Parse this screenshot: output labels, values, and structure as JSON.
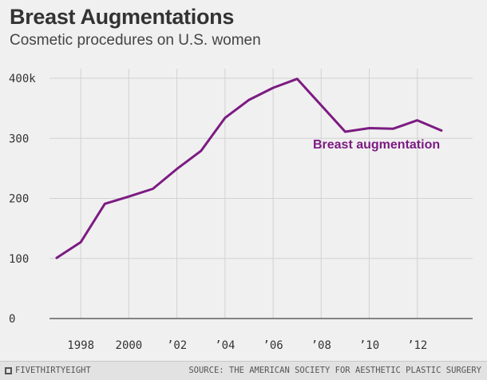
{
  "header": {
    "title": "Breast Augmentations",
    "subtitle": "Cosmetic procedures on U.S. women"
  },
  "footer": {
    "brand": "FIVETHIRTYEIGHT",
    "source": "SOURCE: THE AMERICAN SOCIETY FOR AESTHETIC PLASTIC SURGERY"
  },
  "colors": {
    "line": "#7c1b82",
    "grid": "#d2d2d2",
    "baseline": "#444444",
    "background": "#f0f0f0"
  },
  "chart_data": {
    "type": "line",
    "title": "Breast Augmentations",
    "subtitle": "Cosmetic procedures on U.S. women",
    "xlim": [
      1996.7,
      2014.3
    ],
    "ylim": [
      0,
      400
    ],
    "x_ticks": [
      {
        "value": 1998,
        "label": "1998"
      },
      {
        "value": 2000,
        "label": "2000"
      },
      {
        "value": 2002,
        "label": "’02"
      },
      {
        "value": 2004,
        "label": "’04"
      },
      {
        "value": 2006,
        "label": "’06"
      },
      {
        "value": 2008,
        "label": "’08"
      },
      {
        "value": 2010,
        "label": "’10"
      },
      {
        "value": 2012,
        "label": "’12"
      }
    ],
    "y_ticks": [
      {
        "value": 0,
        "label": "0"
      },
      {
        "value": 100,
        "label": "100"
      },
      {
        "value": 200,
        "label": "200"
      },
      {
        "value": 300,
        "label": "300"
      },
      {
        "value": 400,
        "label": "400k"
      }
    ],
    "grid": true,
    "series": [
      {
        "name": "Breast augmentation",
        "x": [
          1997,
          1998,
          1999,
          2000,
          2001,
          2002,
          2003,
          2004,
          2005,
          2006,
          2007,
          2008,
          2009,
          2010,
          2011,
          2012,
          2013
        ],
        "values": [
          101,
          127,
          191,
          203,
          216,
          249,
          279,
          334,
          364,
          384,
          399,
          355,
          311,
          317,
          316,
          330,
          313
        ]
      }
    ]
  }
}
